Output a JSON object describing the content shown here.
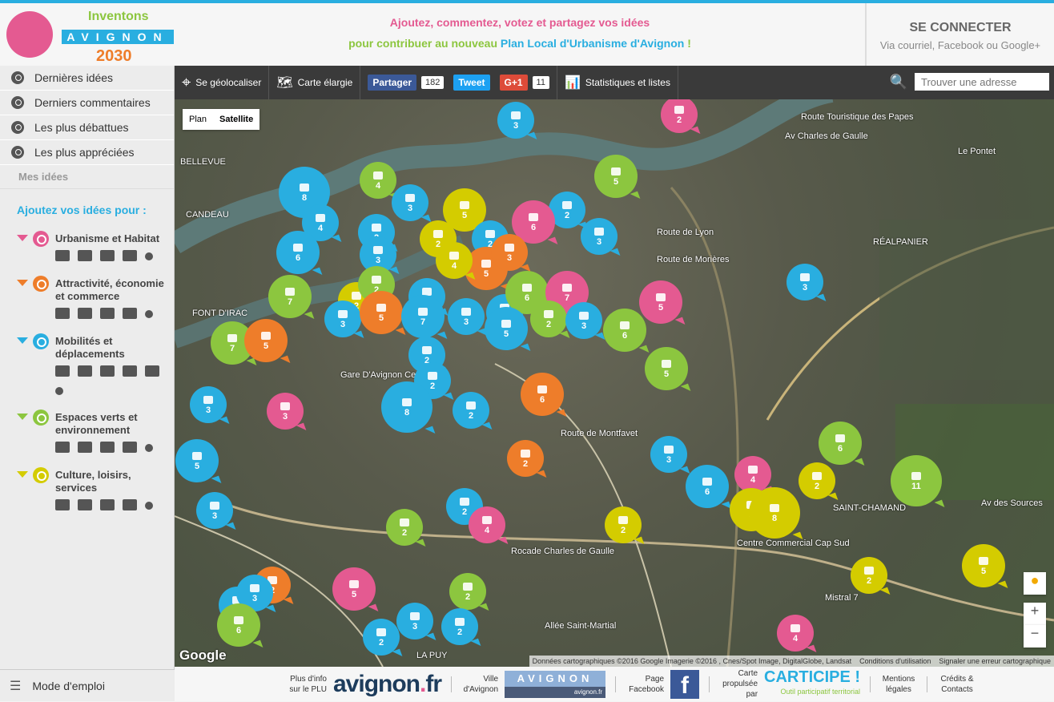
{
  "header": {
    "logo": {
      "top": "Inventons",
      "middle": "AVIGNON",
      "bottom": "2030"
    },
    "tagline1": "Ajoutez, commentez, votez et partagez vos idées",
    "tagline2_pre": "pour contribuer au nouveau ",
    "tagline2_link": "Plan Local d'Urbanisme d'Avignon",
    "tagline2_post": " !",
    "connect_title": "SE CONNECTER",
    "connect_sub": "Via courriel, Facebook ou Google+"
  },
  "sidebar": {
    "nav": [
      "Dernières idées",
      "Derniers commentaires",
      "Les plus débattues",
      "Les plus appréciées"
    ],
    "mes_idees": "Mes idées",
    "add_title": "Ajoutez vos idées pour :",
    "categories": [
      {
        "name": "Urbanisme et Habitat",
        "color": "#e45a91",
        "icons": [
          "crane-icon",
          "construction-icon",
          "buildings-icon",
          "monument-icon",
          "other-icon"
        ]
      },
      {
        "name": "Attractivité, économie et commerce",
        "color": "#ee7d2a",
        "icons": [
          "factory-icon",
          "basket-icon",
          "hotel-icon",
          "agriculture-icon",
          "other-icon"
        ]
      },
      {
        "name": "Mobilités et déplacements",
        "color": "#29aee0",
        "icons": [
          "car-icon",
          "bus-icon",
          "pedestrian-icon",
          "bicycle-icon",
          "multimodal-icon",
          "other-icon"
        ]
      },
      {
        "name": "Espaces verts et environnement",
        "color": "#8cc63f",
        "icons": [
          "water-icon",
          "tree-icon",
          "plant-icon",
          "energy-icon",
          "other-icon"
        ]
      },
      {
        "name": "Culture, loisirs, services",
        "color": "#d4cc00",
        "icons": [
          "culture-icon",
          "sport-icon",
          "services-icon",
          "education-icon",
          "other-icon"
        ]
      }
    ],
    "mode_emploi": "Mode d'emploi"
  },
  "toolbar": {
    "geoloc": "Se géolocaliser",
    "carte": "Carte élargie",
    "partager": "Partager",
    "partager_count": "182",
    "tweet": "Tweet",
    "gplus": "G+1",
    "gplus_count": "11",
    "stats": "Statistiques et listes",
    "search_placeholder": "Trouver une adresse"
  },
  "map": {
    "type_plan": "Plan",
    "type_satellite": "Satellite",
    "selected_type": "Satellite",
    "google": "Google",
    "attribution": "Données cartographiques ©2016 Google Imagerie ©2016 , Cnes/Spot Image, DigitalGlobe, Landsat",
    "terms": "Conditions d'utilisation",
    "report": "Signaler une erreur cartographique",
    "labels": [
      "Le Pontet",
      "Av Charles de Gaulle",
      "Route de Lyon",
      "Route de Morières",
      "RÉALPANIER",
      "FONT D'IRAC",
      "CANDEAU",
      "BELLEVUE",
      "Gare D'Avignon Ce",
      "Route de Montfavet",
      "Rocade Charles de Gaulle",
      "Centre Commercial Cap Sud",
      "Allée Saint-Martial",
      "LA PUY",
      "Av des Sources",
      "Route Touristique des Papes",
      "SAINT-CHAMAND",
      "Mistral 7"
    ],
    "markers": [
      {
        "cat": 2,
        "n": 3
      },
      {
        "cat": 0,
        "n": 2
      },
      {
        "cat": 2,
        "n": 8
      },
      {
        "cat": 3,
        "n": 4
      },
      {
        "cat": 3,
        "n": 5
      },
      {
        "cat": 2,
        "n": 4
      },
      {
        "cat": 4,
        "n": 5
      },
      {
        "cat": 2,
        "n": 2
      },
      {
        "cat": 0,
        "n": 6
      },
      {
        "cat": 2,
        "n": 3
      },
      {
        "cat": 2,
        "n": 3
      },
      {
        "cat": 2,
        "n": 2
      },
      {
        "cat": 2,
        "n": 6
      },
      {
        "cat": 2,
        "n": 3
      },
      {
        "cat": 2,
        "n": 2
      },
      {
        "cat": 4,
        "n": 2
      },
      {
        "cat": 1,
        "n": 5
      },
      {
        "cat": 4,
        "n": 4
      },
      {
        "cat": 1,
        "n": 3
      },
      {
        "cat": 2,
        "n": 3
      },
      {
        "cat": 0,
        "n": 5
      },
      {
        "cat": 3,
        "n": 7
      },
      {
        "cat": 4,
        "n": 2
      },
      {
        "cat": 3,
        "n": 2
      },
      {
        "cat": 2,
        "n": 3
      },
      {
        "cat": 1,
        "n": 5
      },
      {
        "cat": 2,
        "n": 2
      },
      {
        "cat": 2,
        "n": 7
      },
      {
        "cat": 2,
        "n": 3
      },
      {
        "cat": 2,
        "n": 4
      },
      {
        "cat": 3,
        "n": 6
      },
      {
        "cat": 0,
        "n": 7
      },
      {
        "cat": 3,
        "n": 2
      },
      {
        "cat": 2,
        "n": 3
      },
      {
        "cat": 3,
        "n": 6
      },
      {
        "cat": 2,
        "n": 5
      },
      {
        "cat": 3,
        "n": 7
      },
      {
        "cat": 1,
        "n": 5
      },
      {
        "cat": 3,
        "n": 5
      },
      {
        "cat": 2,
        "n": 2
      },
      {
        "cat": 2,
        "n": 2
      },
      {
        "cat": 2,
        "n": 3
      },
      {
        "cat": 0,
        "n": 3
      },
      {
        "cat": 2,
        "n": 8
      },
      {
        "cat": 2,
        "n": 2
      },
      {
        "cat": 1,
        "n": 6
      },
      {
        "cat": 2,
        "n": 5
      },
      {
        "cat": 3,
        "n": 6
      },
      {
        "cat": 2,
        "n": 3
      },
      {
        "cat": 1,
        "n": 2
      },
      {
        "cat": 2,
        "n": 6
      },
      {
        "cat": 0,
        "n": 4
      },
      {
        "cat": 4,
        "n": 2
      },
      {
        "cat": 3,
        "n": 11
      },
      {
        "cat": 2,
        "n": 3
      },
      {
        "cat": 2,
        "n": 2
      },
      {
        "cat": 0,
        "n": 4
      },
      {
        "cat": 3,
        "n": 2
      },
      {
        "cat": 4,
        "n": 2
      },
      {
        "cat": 4,
        "n": 5
      },
      {
        "cat": 4,
        "n": 8
      },
      {
        "cat": 4,
        "n": 5
      },
      {
        "cat": 4,
        "n": 2
      },
      {
        "cat": 0,
        "n": 5
      },
      {
        "cat": 1,
        "n": 2
      },
      {
        "cat": 2,
        "n": 4
      },
      {
        "cat": 2,
        "n": 3
      },
      {
        "cat": 3,
        "n": 2
      },
      {
        "cat": 3,
        "n": 6
      },
      {
        "cat": 2,
        "n": 3
      },
      {
        "cat": 2,
        "n": 2
      },
      {
        "cat": 2,
        "n": 2
      },
      {
        "cat": 0,
        "n": 4
      }
    ]
  },
  "footer": {
    "plu_label": "Plus d'info sur le PLU",
    "avignon_fr": "avignon",
    "avignon_fr_dot": ".",
    "avignon_fr_tld": "fr",
    "ville_label": "Ville d'Avignon",
    "ville_logo": "AVIGNON",
    "ville_logo_sub": "avignon.fr",
    "facebook_label": "Page Facebook",
    "propulsee_label": "Carte propulsée par",
    "carticipe": "CARTICIPE !",
    "carticipe_sub": "Outil participatif territorial",
    "mentions": "Mentions légales",
    "credits": "Crédits & Contacts"
  }
}
